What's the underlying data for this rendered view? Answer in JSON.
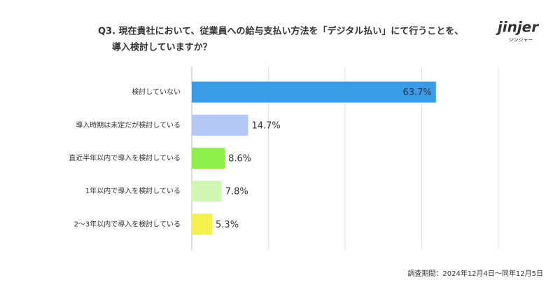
{
  "chart_data": {
    "type": "bar",
    "orientation": "horizontal",
    "title": [
      "Q3. 現在貴社において、従業員への給与支払い方法を「デジタル払い」にて行うことを、",
      "導入検討していますか？"
    ],
    "logo": {
      "name": "jinjer",
      "sub": "ジンジャー"
    },
    "footnote": "調査期間：2024年12月4日〜同年12月5日",
    "categories": [
      "検討していない",
      "導入時期は未定だが検討している",
      "直近半年以内で導入を検討している",
      "1年以内で導入を検討している",
      "2〜3年以内で導入を検討している"
    ],
    "values": [
      63.7,
      14.7,
      8.6,
      7.8,
      5.3
    ],
    "value_labels": [
      "63.7%",
      "14.7%",
      "8.6%",
      "7.8%",
      "5.3%"
    ],
    "colors": [
      "#3a9be6",
      "#b3c8f4",
      "#8ff04c",
      "#d2f7b4",
      "#f4f04c"
    ],
    "xlim": [
      0,
      80
    ],
    "xticks": [
      0,
      20,
      40,
      60,
      80
    ],
    "grid": true
  }
}
